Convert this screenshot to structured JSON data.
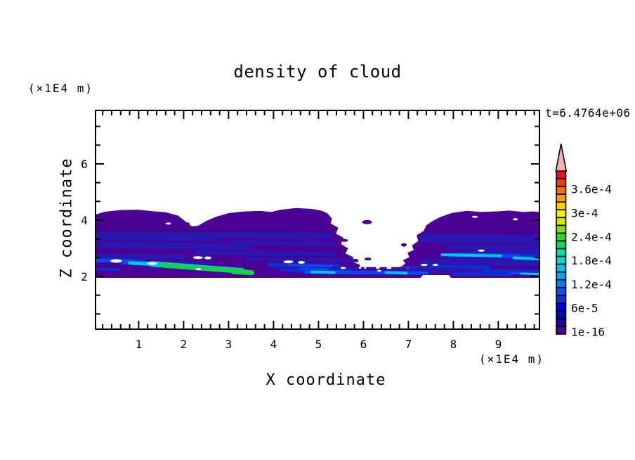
{
  "chart_data": {
    "type": "filled_contour",
    "title": "density of cloud",
    "time_annotation": "t=6.4764e+06",
    "x": {
      "label": "X coordinate",
      "unit": "(×1E4 m)",
      "range": [
        0.05,
        9.92
      ],
      "major_ticks": [
        1,
        2,
        3,
        4,
        5,
        6,
        7,
        8,
        9
      ],
      "minor_tick_step": 0.2
    },
    "z": {
      "label": "Z coordinate",
      "unit": "(×1E4 m)",
      "range": [
        0.12,
        7.9
      ],
      "major_ticks": [
        2,
        4,
        6
      ],
      "minor_tick_step": 0.667
    },
    "colorbar": {
      "labeled_levels": [
        "3.6e-4",
        "3e-4",
        "2.4e-4",
        "1.8e-4",
        "1.2e-4",
        "6e-5",
        "1e-16"
      ],
      "level_step": 2e-05,
      "n_segments": 21,
      "segment_colors_bottom_to_top": [
        "#4b0096",
        "#21009b",
        "#0008b0",
        "#0000dc",
        "#0a30e6",
        "#0b53e9",
        "#0b7aee",
        "#00a2f0",
        "#00c4e8",
        "#00d8cf",
        "#00e0a2",
        "#0cdb5f",
        "#2fd32b",
        "#85dd14",
        "#d2e900",
        "#f4ee00",
        "#fbce00",
        "#f99e00",
        "#f47100",
        "#ee3f00",
        "#e81123"
      ],
      "overflow_color": "#f5b2b2"
    },
    "field_description": "Cloud density layer between z≈2 and z≈4.45 (×1E4 m) spanning the full x range, broken by a clear-air gap at x≈5.5–7.2; highest densities (green, ≈2e-4) form a thin sloping filament near z≈2.1–2.5 for x≈0–3.6; cyan/blue filaments (≈6e-5–1.6e-4) lie near z≈2.0–2.8 elsewhere; the bulk cloud body sits in the lowest contour bin (1e-16–2e-5, purple).",
    "cloud": {
      "outline": [
        [
          0.04,
          1.95
        ],
        [
          0.04,
          4.2
        ],
        [
          0.25,
          4.3
        ],
        [
          0.6,
          4.36
        ],
        [
          1.0,
          4.37
        ],
        [
          1.3,
          4.32
        ],
        [
          1.6,
          4.28
        ],
        [
          1.88,
          4.16
        ],
        [
          2.02,
          3.98
        ],
        [
          2.18,
          3.78
        ],
        [
          2.32,
          3.8
        ],
        [
          2.5,
          3.97
        ],
        [
          2.72,
          4.12
        ],
        [
          3.0,
          4.25
        ],
        [
          3.35,
          4.31
        ],
        [
          3.7,
          4.33
        ],
        [
          3.95,
          4.29
        ],
        [
          4.15,
          4.37
        ],
        [
          4.5,
          4.43
        ],
        [
          4.85,
          4.4
        ],
        [
          5.08,
          4.33
        ],
        [
          5.2,
          4.24
        ],
        [
          5.3,
          4.06
        ],
        [
          5.27,
          3.88
        ],
        [
          5.44,
          3.73
        ],
        [
          5.39,
          3.52
        ],
        [
          5.56,
          3.37
        ],
        [
          5.5,
          3.15
        ],
        [
          5.66,
          3.0
        ],
        [
          5.6,
          2.82
        ],
        [
          5.78,
          2.68
        ],
        [
          5.74,
          2.52
        ],
        [
          5.92,
          2.42
        ],
        [
          5.93,
          2.3
        ],
        [
          6.1,
          2.27
        ],
        [
          6.3,
          2.3
        ],
        [
          6.5,
          2.27
        ],
        [
          6.68,
          2.3
        ],
        [
          6.85,
          2.36
        ],
        [
          6.93,
          2.46
        ],
        [
          6.88,
          2.58
        ],
        [
          7.02,
          2.68
        ],
        [
          6.98,
          2.84
        ],
        [
          7.12,
          2.94
        ],
        [
          7.08,
          3.1
        ],
        [
          7.22,
          3.26
        ],
        [
          7.18,
          3.46
        ],
        [
          7.34,
          3.62
        ],
        [
          7.4,
          3.82
        ],
        [
          7.55,
          3.98
        ],
        [
          7.72,
          4.12
        ],
        [
          7.98,
          4.26
        ],
        [
          8.3,
          4.33
        ],
        [
          8.62,
          4.29
        ],
        [
          8.95,
          4.31
        ],
        [
          9.25,
          4.34
        ],
        [
          9.55,
          4.29
        ],
        [
          9.78,
          4.31
        ],
        [
          9.93,
          4.29
        ],
        [
          9.93,
          1.95
        ],
        [
          7.95,
          1.95
        ],
        [
          7.9,
          2.05
        ],
        [
          7.32,
          2.05
        ],
        [
          7.27,
          1.95
        ]
      ],
      "under_gap": {
        "clear": [
          5.9,
          7.0,
          2.22,
          2.34
        ],
        "dashes": [
          [
            5.95,
            6.02,
            2.27,
            5
          ],
          [
            6.06,
            6.28,
            2.27,
            5
          ],
          [
            6.36,
            6.52,
            2.28,
            4
          ],
          [
            6.62,
            6.98,
            2.27,
            5
          ],
          [
            7.03,
            7.14,
            2.28,
            4
          ]
        ]
      },
      "band_groups": [
        {
          "name": "shade-dark-purple",
          "color": "#41068c",
          "segments": [
            [
              0.1,
              3.63,
              5.2,
              3.58,
              6
            ],
            [
              7.5,
              3.6,
              9.93,
              3.56,
              5
            ],
            [
              0.3,
              3.9,
              2.1,
              3.87,
              4
            ],
            [
              7.9,
              3.92,
              9.5,
              3.9,
              4
            ]
          ]
        },
        {
          "name": "dark-blue",
          "color": "#2a16b0",
          "segments": [
            [
              0.05,
              3.44,
              2.7,
              3.4,
              12
            ],
            [
              0.2,
              3.12,
              3.4,
              3.06,
              9
            ],
            [
              2.5,
              3.48,
              5.25,
              3.44,
              8
            ],
            [
              3.1,
              3.2,
              5.3,
              3.16,
              6
            ],
            [
              0.05,
              2.72,
              2.0,
              2.7,
              7
            ],
            [
              2.3,
              2.84,
              5.35,
              2.8,
              7
            ],
            [
              3.4,
              2.62,
              5.42,
              2.58,
              5
            ],
            [
              1.0,
              2.52,
              2.6,
              2.48,
              4
            ],
            [
              7.35,
              3.36,
              9.93,
              3.31,
              12
            ],
            [
              7.9,
              3.05,
              9.93,
              3.01,
              7
            ],
            [
              7.35,
              2.52,
              9.93,
              2.48,
              9
            ],
            [
              7.6,
              2.21,
              9.93,
              2.17,
              6
            ],
            [
              8.2,
              2.88,
              9.93,
              2.85,
              5
            ],
            [
              5.0,
              2.6,
              5.85,
              2.56,
              5
            ],
            [
              4.0,
              2.3,
              5.85,
              2.26,
              5
            ],
            [
              4.5,
              2.2,
              7.5,
              2.17,
              7
            ]
          ]
        },
        {
          "name": "blue",
          "color": "#0d2fd8",
          "segments": [
            [
              0.05,
              2.62,
              0.9,
              2.56,
              5
            ],
            [
              3.9,
              2.42,
              5.45,
              2.38,
              5
            ],
            [
              0.05,
              2.26,
              0.55,
              2.24,
              4
            ],
            [
              4.2,
              2.22,
              5.7,
              2.2,
              4
            ],
            [
              7.9,
              2.76,
              9.93,
              2.7,
              7
            ],
            [
              7.5,
              2.36,
              8.8,
              2.32,
              4
            ],
            [
              8.7,
              2.2,
              9.93,
              2.16,
              5
            ],
            [
              6.95,
              2.33,
              7.55,
              2.31,
              3
            ],
            [
              8.0,
              2.08,
              9.3,
              2.06,
              4
            ]
          ]
        },
        {
          "name": "bright-blue",
          "color": "#0b49ee",
          "segments": [
            [
              0.05,
              2.57,
              1.15,
              2.5,
              5
            ],
            [
              0.6,
              2.52,
              2.2,
              2.36,
              7
            ],
            [
              4.35,
              2.4,
              5.3,
              2.37,
              3
            ],
            [
              4.7,
              2.15,
              7.4,
              2.12,
              5
            ],
            [
              8.05,
              2.79,
              9.45,
              2.73,
              5
            ],
            [
              9.3,
              2.12,
              9.93,
              2.09,
              3
            ],
            [
              4.6,
              2.28,
              5.2,
              2.26,
              3
            ]
          ]
        },
        {
          "name": "cyan",
          "color": "#00c6ec",
          "segments": [
            [
              0.8,
              2.48,
              1.75,
              2.4,
              5
            ],
            [
              1.3,
              2.44,
              3.3,
              2.2,
              8
            ],
            [
              4.85,
              2.16,
              5.35,
              2.14,
              4
            ],
            [
              6.5,
              2.14,
              6.95,
              2.12,
              4
            ],
            [
              7.75,
              2.77,
              9.05,
              2.73,
              4
            ],
            [
              9.35,
              2.66,
              9.93,
              2.62,
              4
            ],
            [
              9.5,
              2.1,
              9.93,
              2.08,
              3
            ]
          ]
        },
        {
          "name": "green",
          "color": "#17d23b",
          "segments": [
            [
              1.5,
              2.41,
              3.45,
              2.16,
              6
            ],
            [
              3.1,
              2.17,
              3.52,
              2.13,
              7
            ]
          ]
        }
      ],
      "islands": [
        [
          5.44,
          2.7,
          6,
          2.5
        ],
        [
          6.1,
          2.62,
          5,
          2
        ],
        [
          6.9,
          3.12,
          4,
          2.5
        ],
        [
          5.58,
          3.28,
          5,
          2
        ],
        [
          6.08,
          3.93,
          7,
          3
        ],
        [
          5.35,
          3.05,
          4,
          2
        ]
      ],
      "holes": [
        [
          0.5,
          2.55,
          8,
          2.5
        ],
        [
          1.3,
          2.46,
          7,
          2
        ],
        [
          2.32,
          2.67,
          7,
          2
        ],
        [
          2.54,
          2.66,
          5,
          2
        ],
        [
          2.33,
          2.26,
          4,
          1.5
        ],
        [
          1.66,
          3.88,
          4,
          1.5
        ],
        [
          8.48,
          4.12,
          4,
          1.5
        ],
        [
          9.38,
          4.03,
          3.5,
          1.5
        ],
        [
          7.35,
          2.41,
          5,
          1.5
        ],
        [
          7.6,
          2.41,
          4,
          1.5
        ],
        [
          8.62,
          2.92,
          5,
          1.5
        ],
        [
          4.33,
          2.52,
          7,
          2
        ],
        [
          4.62,
          2.5,
          5,
          2
        ],
        [
          5.55,
          2.3,
          4,
          1.5
        ],
        [
          6.35,
          2.2,
          3,
          1.2
        ]
      ]
    }
  }
}
